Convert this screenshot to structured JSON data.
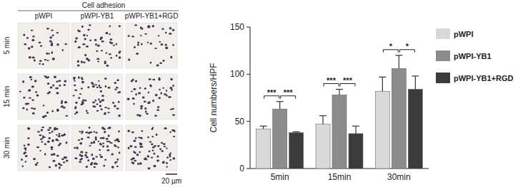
{
  "image_panel": {
    "title": "Cell adhesion",
    "columns": [
      "pWPI",
      "pWPI-YB1",
      "pWPI-YB1+RGD"
    ],
    "rows": [
      "5 min",
      "15 min",
      "30 min"
    ],
    "scale_bar": "20 µm"
  },
  "chart_data": {
    "type": "bar",
    "y_label": "Cell numbers/HPF",
    "categories": [
      "5min",
      "15min",
      "30min"
    ],
    "series": [
      {
        "name": "pWPI",
        "color": "#d9d9d9",
        "values": [
          42,
          47,
          82
        ],
        "errors": [
          3,
          9,
          15
        ]
      },
      {
        "name": "pWPI-YB1",
        "color": "#8c8c8c",
        "values": [
          63,
          78,
          106
        ],
        "errors": [
          8,
          6,
          14
        ]
      },
      {
        "name": "pWPI-YB1+RGD",
        "color": "#3b3b3b",
        "values": [
          38,
          37,
          84
        ],
        "errors": [
          1,
          8,
          14
        ]
      }
    ],
    "ylim": [
      0,
      150
    ],
    "yticks": [
      0,
      50,
      100,
      150
    ],
    "grid": false,
    "legend": "right",
    "annotations": [
      {
        "category": 0,
        "from": 0,
        "to": 1,
        "label": "***"
      },
      {
        "category": 0,
        "from": 1,
        "to": 2,
        "label": "***"
      },
      {
        "category": 1,
        "from": 0,
        "to": 1,
        "label": "***"
      },
      {
        "category": 1,
        "from": 1,
        "to": 2,
        "label": "***"
      },
      {
        "category": 2,
        "from": 0,
        "to": 1,
        "label": "*"
      },
      {
        "category": 2,
        "from": 1,
        "to": 2,
        "label": "*"
      }
    ]
  }
}
